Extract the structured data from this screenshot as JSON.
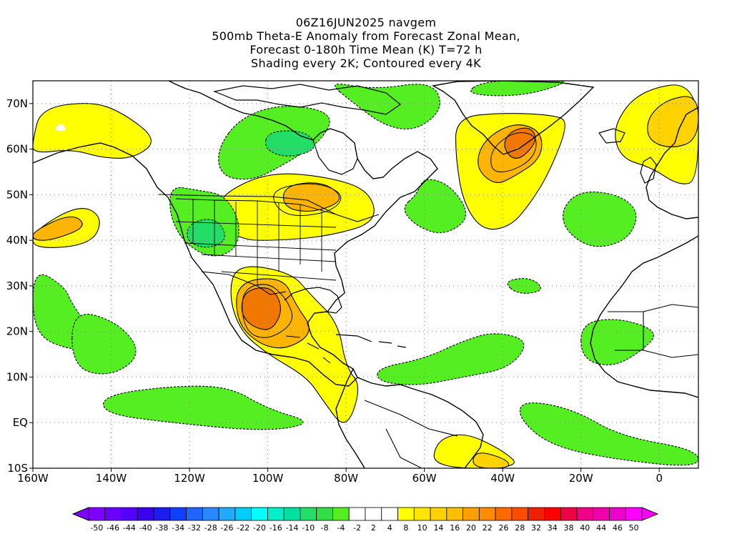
{
  "titles": [
    "06Z16JUN2025 navgem",
    "500mb Theta-E Anomaly from Forecast Zonal Mean,",
    "Forecast 0-180h Time Mean (K) T=72 h",
    "Shading every 2K; Contoured every 4K"
  ],
  "map": {
    "lon_range": [
      -160,
      10
    ],
    "lat_range": [
      -10,
      75
    ],
    "lat_ticks": [
      {
        "v": 70,
        "label": "70N"
      },
      {
        "v": 60,
        "label": "60N"
      },
      {
        "v": 50,
        "label": "50N"
      },
      {
        "v": 40,
        "label": "40N"
      },
      {
        "v": 30,
        "label": "30N"
      },
      {
        "v": 20,
        "label": "20N"
      },
      {
        "v": 10,
        "label": "10N"
      },
      {
        "v": 0,
        "label": "EQ"
      },
      {
        "v": -10,
        "label": "10S"
      }
    ],
    "lon_ticks": [
      {
        "v": -160,
        "label": "160W"
      },
      {
        "v": -140,
        "label": "140W"
      },
      {
        "v": -120,
        "label": "120W"
      },
      {
        "v": -100,
        "label": "100W"
      },
      {
        "v": -80,
        "label": "80W"
      },
      {
        "v": -60,
        "label": "60W"
      },
      {
        "v": -40,
        "label": "40W"
      },
      {
        "v": -20,
        "label": "20W"
      },
      {
        "v": 0,
        "label": "0"
      }
    ],
    "grid": "dotted, every 10 degrees",
    "colors": {
      "warm_2": "#ffff00",
      "warm_4": "#ffd200",
      "warm_6": "#ffb400",
      "warm_8": "#ff9600",
      "warm_10": "#f07800",
      "cold_2": "#55ee22",
      "cold_4": "#22dd66",
      "cold_6": "#22cc99"
    },
    "anomaly_regions": [
      {
        "name": "alaska-warm",
        "sign": "positive",
        "level": 2,
        "pts": [
          [
            -160,
            62
          ],
          [
            -158,
            69
          ],
          [
            -145,
            70.5
          ],
          [
            -137,
            68
          ],
          [
            -128,
            62
          ],
          [
            -134,
            58
          ],
          [
            -142,
            58
          ],
          [
            -150,
            60
          ],
          [
            -160,
            59
          ]
        ]
      },
      {
        "name": "alaska-hole",
        "sign": "zero",
        "level": 0,
        "pts": [
          [
            -155,
            64
          ],
          [
            -153,
            66
          ],
          [
            -151,
            64
          ]
        ]
      },
      {
        "name": "canada-cold",
        "sign": "negative",
        "level": 2,
        "pts": [
          [
            -107,
            67
          ],
          [
            -96,
            70
          ],
          [
            -83,
            68
          ],
          [
            -86,
            62
          ],
          [
            -95,
            57
          ],
          [
            -104,
            53
          ],
          [
            -112,
            54
          ],
          [
            -113,
            60
          ]
        ]
      },
      {
        "name": "canada-cold-inner",
        "sign": "negative",
        "level": 4,
        "pts": [
          [
            -100,
            64
          ],
          [
            -90,
            64
          ],
          [
            -87,
            60
          ],
          [
            -95,
            58
          ],
          [
            -101,
            60
          ]
        ]
      },
      {
        "name": "labrador-cold",
        "sign": "negative",
        "level": 2,
        "pts": [
          [
            -85,
            75
          ],
          [
            -73,
            73
          ],
          [
            -58,
            75
          ],
          [
            -55,
            69
          ],
          [
            -62,
            64
          ],
          [
            -70,
            65
          ],
          [
            -78,
            70
          ]
        ]
      },
      {
        "name": "baffin-cold",
        "sign": "negative",
        "level": 2,
        "pts": [
          [
            -62,
            50
          ],
          [
            -60,
            54
          ],
          [
            -53,
            52
          ],
          [
            -48,
            45
          ],
          [
            -55,
            41
          ],
          [
            -62,
            43
          ],
          [
            -66,
            47
          ]
        ]
      },
      {
        "name": "greenland-warm",
        "sign": "positive",
        "level": 2,
        "pts": [
          [
            -52,
            67
          ],
          [
            -40,
            68
          ],
          [
            -27,
            67.5
          ],
          [
            -23,
            66
          ],
          [
            -28,
            55
          ],
          [
            -33,
            48
          ],
          [
            -38,
            43
          ],
          [
            -45,
            42
          ],
          [
            -50,
            48
          ],
          [
            -52,
            58
          ]
        ]
      },
      {
        "name": "greenland-warm-inner",
        "sign": "positive",
        "level": 6,
        "pts": [
          [
            -45,
            62
          ],
          [
            -37,
            66
          ],
          [
            -30,
            64
          ],
          [
            -30,
            58
          ],
          [
            -37,
            54
          ],
          [
            -42,
            52
          ],
          [
            -47,
            56
          ]
        ]
      },
      {
        "name": "greenland-warm-core",
        "sign": "positive",
        "level": 10,
        "pts": [
          [
            -38,
            64
          ],
          [
            -33,
            65
          ],
          [
            -31,
            62
          ],
          [
            -35,
            58
          ],
          [
            -38,
            58
          ],
          [
            -40,
            61
          ]
        ]
      },
      {
        "name": "iceland-cold",
        "sign": "negative",
        "level": 2,
        "pts": [
          [
            -50,
            72
          ],
          [
            -35,
            71.5
          ],
          [
            -22,
            75
          ],
          [
            -30,
            75
          ],
          [
            -45,
            75
          ]
        ]
      },
      {
        "name": "europe-warm",
        "sign": "positive",
        "level": 2,
        "pts": [
          [
            -12,
            65
          ],
          [
            -5,
            73
          ],
          [
            10,
            75
          ],
          [
            10,
            53
          ],
          [
            5,
            52
          ],
          [
            -2,
            56
          ],
          [
            -10,
            58
          ]
        ]
      },
      {
        "name": "europe-warm-inner",
        "sign": "positive",
        "level": 4,
        "pts": [
          [
            -3,
            67
          ],
          [
            2,
            71
          ],
          [
            10,
            72
          ],
          [
            10,
            62
          ],
          [
            3,
            60
          ],
          [
            -3,
            62
          ]
        ]
      },
      {
        "name": "atlantic-cold",
        "sign": "negative",
        "level": 2,
        "pts": [
          [
            -25,
            47
          ],
          [
            -20,
            51
          ],
          [
            -10,
            50
          ],
          [
            -5,
            46
          ],
          [
            -8,
            40
          ],
          [
            -17,
            38
          ],
          [
            -24,
            42
          ]
        ]
      },
      {
        "name": "great-lakes-warm",
        "sign": "positive",
        "level": 2,
        "pts": [
          [
            -112,
            50
          ],
          [
            -100,
            55
          ],
          [
            -85,
            54
          ],
          [
            -74,
            51
          ],
          [
            -72,
            44
          ],
          [
            -84,
            41
          ],
          [
            -96,
            40
          ],
          [
            -108,
            40
          ],
          [
            -112,
            46
          ]
        ]
      },
      {
        "name": "great-lakes-warm-inner",
        "sign": "positive",
        "level": 6,
        "pts": [
          [
            -96,
            52
          ],
          [
            -86,
            53
          ],
          [
            -80,
            49
          ],
          [
            -88,
            46
          ],
          [
            -96,
            47
          ]
        ]
      },
      {
        "name": "west-us-cold",
        "sign": "negative",
        "level": 2,
        "pts": [
          [
            -125,
            52
          ],
          [
            -118,
            51
          ],
          [
            -111,
            50
          ],
          [
            -107,
            44
          ],
          [
            -108,
            38
          ],
          [
            -114,
            36
          ],
          [
            -121,
            39
          ],
          [
            -125,
            45
          ]
        ]
      },
      {
        "name": "west-us-cold-inner",
        "sign": "negative",
        "level": 4,
        "pts": [
          [
            -120,
            44
          ],
          [
            -113,
            45
          ],
          [
            -110,
            40
          ],
          [
            -116,
            38
          ],
          [
            -121,
            40
          ]
        ]
      },
      {
        "name": "pacific-warm",
        "sign": "positive",
        "level": 2,
        "pts": [
          [
            -160,
            42
          ],
          [
            -148,
            48
          ],
          [
            -142,
            45
          ],
          [
            -145,
            39
          ],
          [
            -160,
            38
          ]
        ]
      },
      {
        "name": "pacific-warm-inner",
        "sign": "positive",
        "level": 6,
        "pts": [
          [
            -160,
            42
          ],
          [
            -150,
            46
          ],
          [
            -146,
            43
          ],
          [
            -155,
            40
          ],
          [
            -160,
            40
          ]
        ]
      },
      {
        "name": "mexico-warm",
        "sign": "positive",
        "level": 2,
        "pts": [
          [
            -108,
            35
          ],
          [
            -94,
            33
          ],
          [
            -89,
            28
          ],
          [
            -82,
            22
          ],
          [
            -80,
            12
          ],
          [
            -76,
            8
          ],
          [
            -80,
            -2
          ],
          [
            -86,
            5
          ],
          [
            -90,
            10
          ],
          [
            -100,
            15
          ],
          [
            -107,
            20
          ],
          [
            -110,
            28
          ]
        ]
      },
      {
        "name": "mexico-warm-inner",
        "sign": "positive",
        "level": 6,
        "pts": [
          [
            -108,
            31
          ],
          [
            -96,
            32
          ],
          [
            -93,
            26
          ],
          [
            -88,
            20
          ],
          [
            -95,
            16
          ],
          [
            -102,
            17
          ],
          [
            -108,
            22
          ]
        ]
      },
      {
        "name": "mexico-warm-core",
        "sign": "positive",
        "level": 10,
        "pts": [
          [
            -106,
            29
          ],
          [
            -99,
            30
          ],
          [
            -96,
            25
          ],
          [
            -99,
            20
          ],
          [
            -104,
            21
          ],
          [
            -107,
            24
          ]
        ]
      },
      {
        "name": "east-pacific-cold",
        "sign": "negative",
        "level": 2,
        "pts": [
          [
            -160,
            34
          ],
          [
            -152,
            30
          ],
          [
            -150,
            26
          ],
          [
            -145,
            20
          ],
          [
            -135,
            21
          ],
          [
            -140,
            16
          ],
          [
            -152,
            16
          ],
          [
            -160,
            20
          ]
        ]
      },
      {
        "name": "east-pacific-cold-b",
        "sign": "negative",
        "level": 2,
        "pts": [
          [
            -150,
            25
          ],
          [
            -138,
            22
          ],
          [
            -132,
            15
          ],
          [
            -140,
            10
          ],
          [
            -150,
            12
          ]
        ]
      },
      {
        "name": "tropical-pacific-cold",
        "sign": "negative",
        "level": 2,
        "pts": [
          [
            -142,
            6
          ],
          [
            -125,
            8
          ],
          [
            -110,
            8
          ],
          [
            -100,
            3
          ],
          [
            -88,
            0
          ],
          [
            -100,
            -2
          ],
          [
            -125,
            0
          ],
          [
            -142,
            2
          ]
        ]
      },
      {
        "name": "caribbean-cold",
        "sign": "negative",
        "level": 2,
        "pts": [
          [
            -72,
            12
          ],
          [
            -60,
            14
          ],
          [
            -50,
            18
          ],
          [
            -42,
            20
          ],
          [
            -33,
            18
          ],
          [
            -38,
            12
          ],
          [
            -50,
            10
          ],
          [
            -62,
            8
          ],
          [
            -72,
            9
          ]
        ]
      },
      {
        "name": "africa-cold",
        "sign": "negative",
        "level": 2,
        "pts": [
          [
            -20,
            22
          ],
          [
            -10,
            23
          ],
          [
            0,
            20
          ],
          [
            -4,
            16
          ],
          [
            -12,
            12
          ],
          [
            -20,
            14
          ]
        ]
      },
      {
        "name": "south-atlantic-cold",
        "sign": "negative",
        "level": 2,
        "pts": [
          [
            -35,
            5
          ],
          [
            -22,
            3
          ],
          [
            -10,
            -3
          ],
          [
            10,
            -6
          ],
          [
            10,
            -10
          ],
          [
            -12,
            -8
          ],
          [
            -28,
            -5
          ],
          [
            -36,
            1
          ]
        ]
      },
      {
        "name": "brazil-warm",
        "sign": "positive",
        "level": 2,
        "pts": [
          [
            -50,
            -2
          ],
          [
            -40,
            -6
          ],
          [
            -35,
            -10
          ],
          [
            -58,
            -10
          ],
          [
            -57,
            -4
          ]
        ]
      },
      {
        "name": "brazil-warm-inner",
        "sign": "positive",
        "level": 4,
        "pts": [
          [
            -47,
            -6
          ],
          [
            -39,
            -8
          ],
          [
            -38,
            -10
          ],
          [
            -48,
            -10
          ]
        ]
      },
      {
        "name": "canary-cold",
        "sign": "negative",
        "level": 2,
        "pts": [
          [
            -40,
            31
          ],
          [
            -33,
            32
          ],
          [
            -29,
            29
          ],
          [
            -36,
            28
          ]
        ]
      }
    ],
    "contours": [
      {
        "name": "greenland-contour-8",
        "pts": [
          [
            -43,
            60
          ],
          [
            -37,
            64
          ],
          [
            -31,
            63
          ],
          [
            -32,
            58
          ],
          [
            -38,
            55
          ],
          [
            -43,
            55
          ]
        ]
      },
      {
        "name": "mexico-contour-8",
        "pts": [
          [
            -107,
            29
          ],
          [
            -100,
            31
          ],
          [
            -95,
            27
          ],
          [
            -93,
            22
          ],
          [
            -100,
            18
          ],
          [
            -106,
            20
          ]
        ]
      },
      {
        "name": "great-lakes-contour-4",
        "pts": [
          [
            -100,
            51
          ],
          [
            -88,
            53
          ],
          [
            -80,
            50
          ],
          [
            -84,
            46
          ],
          [
            -96,
            45
          ]
        ]
      }
    ]
  },
  "colorbar": {
    "labels": [
      "-50",
      "-46",
      "-44",
      "-40",
      "-38",
      "-34",
      "-32",
      "-28",
      "-26",
      "-22",
      "-20",
      "-16",
      "-14",
      "-10",
      "-8",
      "-4",
      "-2",
      "2",
      "4",
      "8",
      "10",
      "14",
      "16",
      "20",
      "22",
      "26",
      "28",
      "32",
      "34",
      "38",
      "40",
      "44",
      "46",
      "50"
    ],
    "colors": [
      "#8000ff",
      "#6a00ff",
      "#5500ff",
      "#3a00f0",
      "#1c1cf0",
      "#0f3fff",
      "#1e66ff",
      "#2a88ff",
      "#22aaff",
      "#00ccff",
      "#00ffff",
      "#00f0c8",
      "#00e0a0",
      "#22dd66",
      "#33dd44",
      "#55ee22",
      "#ffffff",
      "#ffffff",
      "#ffffff",
      "#ffff00",
      "#ffe600",
      "#ffd200",
      "#ffbe00",
      "#ffa000",
      "#ff8c00",
      "#ff6a00",
      "#ff4c00",
      "#f02000",
      "#ff0000",
      "#f00044",
      "#f00088",
      "#f000aa",
      "#f000cc",
      "#ff00ff"
    ]
  }
}
